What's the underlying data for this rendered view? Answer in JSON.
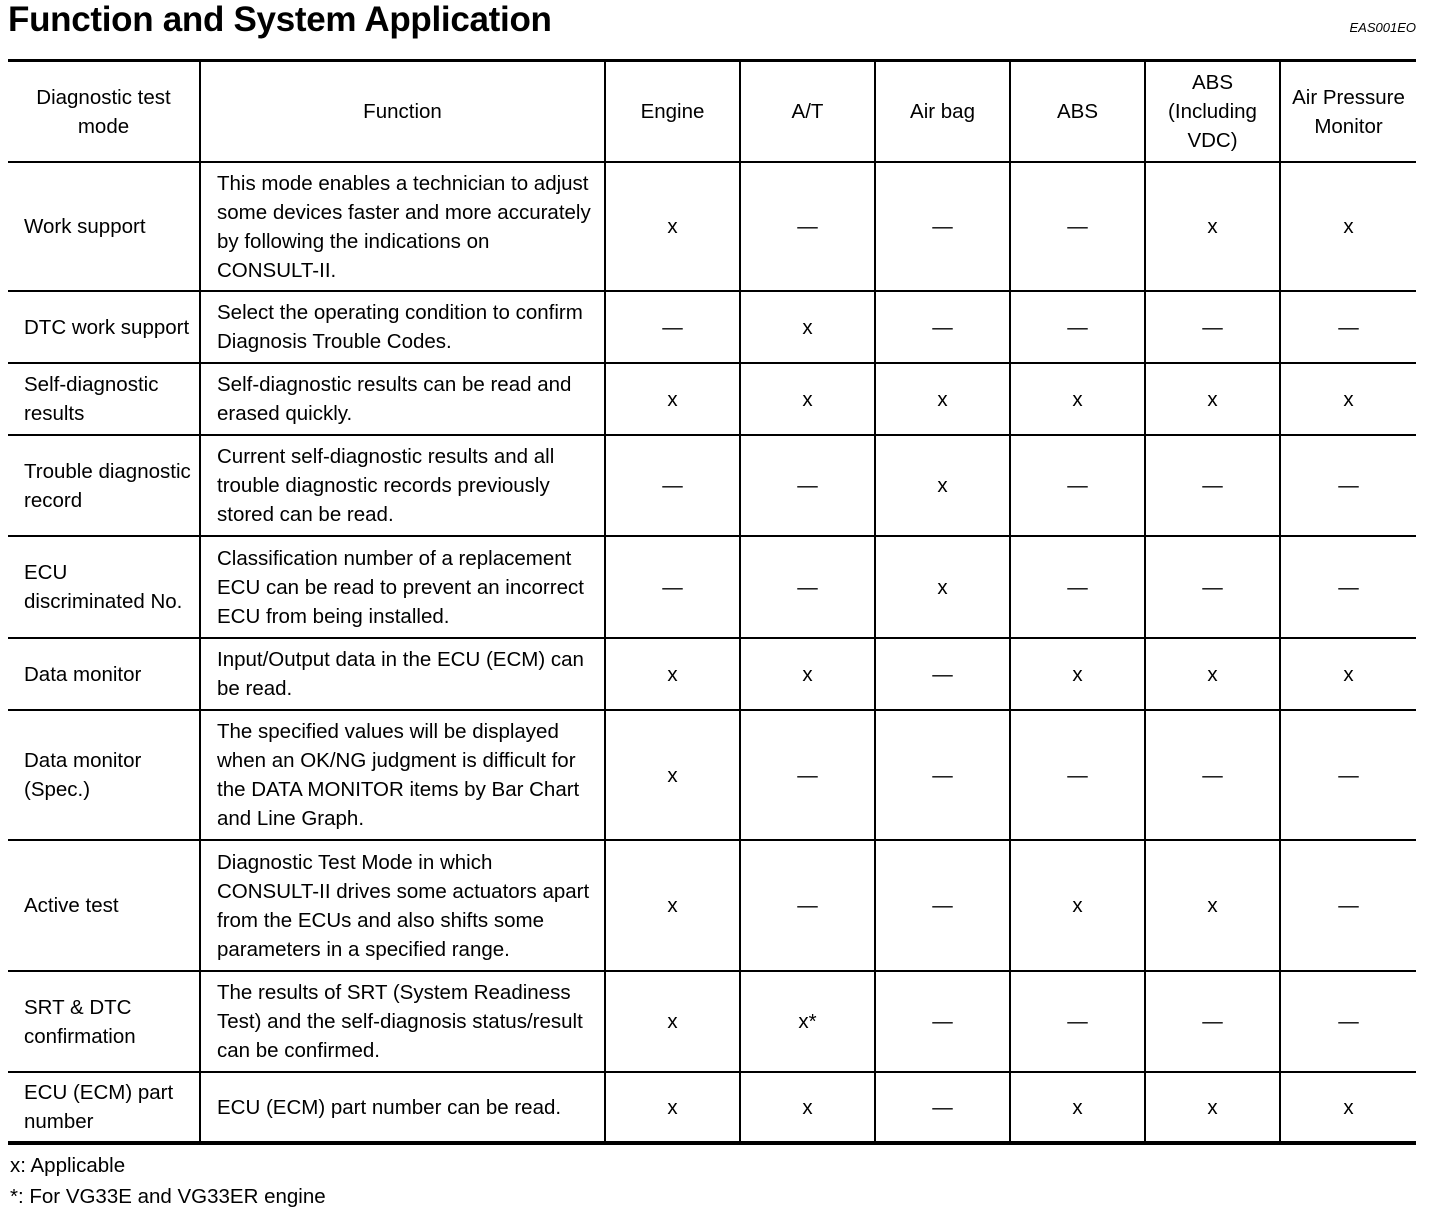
{
  "title": "Function and System Application",
  "doc_code": "EAS001EO",
  "table": {
    "headers": [
      "Diagnostic test mode",
      "Function",
      "Engine",
      "A/T",
      "Air bag",
      "ABS",
      "ABS (Including VDC)",
      "Air Pressure Monitor"
    ],
    "rows": [
      {
        "mode": "Work support",
        "function": "This mode enables a technician to adjust some devices faster and more accurately by following the indications on CONSULT-II.",
        "marks": [
          "x",
          "—",
          "—",
          "—",
          "x",
          "x"
        ]
      },
      {
        "mode": "DTC work support",
        "function": "Select the operating condition to confirm Diagnosis Trouble Codes.",
        "marks": [
          "—",
          "x",
          "—",
          "—",
          "—",
          "—"
        ]
      },
      {
        "mode": "Self-diagnostic results",
        "function": "Self-diagnostic results can be read and erased quickly.",
        "marks": [
          "x",
          "x",
          "x",
          "x",
          "x",
          "x"
        ]
      },
      {
        "mode": "Trouble diagnostic record",
        "function": "Current self-diagnostic results and all trouble diagnostic records previously stored can be read.",
        "marks": [
          "—",
          "—",
          "x",
          "—",
          "—",
          "—"
        ]
      },
      {
        "mode": "ECU discriminated No.",
        "function": "Classification number of a replacement ECU can be read to prevent an incorrect ECU from being installed.",
        "marks": [
          "—",
          "—",
          "x",
          "—",
          "—",
          "—"
        ]
      },
      {
        "mode": "Data monitor",
        "function": "Input/Output data in the ECU (ECM) can be read.",
        "marks": [
          "x",
          "x",
          "—",
          "x",
          "x",
          "x"
        ]
      },
      {
        "mode": "Data monitor (Spec.)",
        "function": "The specified values will be displayed when an OK/NG judgment is difficult for the DATA MONITOR items by Bar Chart and Line Graph.",
        "marks": [
          "x",
          "—",
          "—",
          "—",
          "—",
          "—"
        ]
      },
      {
        "mode": "Active test",
        "function": "Diagnostic Test Mode in which CONSULT-II drives some actuators apart from the ECUs and also shifts some parameters in a specified range.",
        "marks": [
          "x",
          "—",
          "—",
          "x",
          "x",
          "—"
        ]
      },
      {
        "mode": "SRT & DTC confirmation",
        "function": "The results of SRT (System Readiness Test) and the self-diagnosis status/result can be confirmed.",
        "marks": [
          "x",
          "x*",
          "—",
          "—",
          "—",
          "—"
        ]
      },
      {
        "mode": "ECU (ECM) part number",
        "function": "ECU (ECM) part number can be read.",
        "marks": [
          "x",
          "x",
          "—",
          "x",
          "x",
          "x"
        ]
      }
    ]
  },
  "notes": [
    "x: Applicable",
    "*: For VG33E and VG33ER engine"
  ]
}
